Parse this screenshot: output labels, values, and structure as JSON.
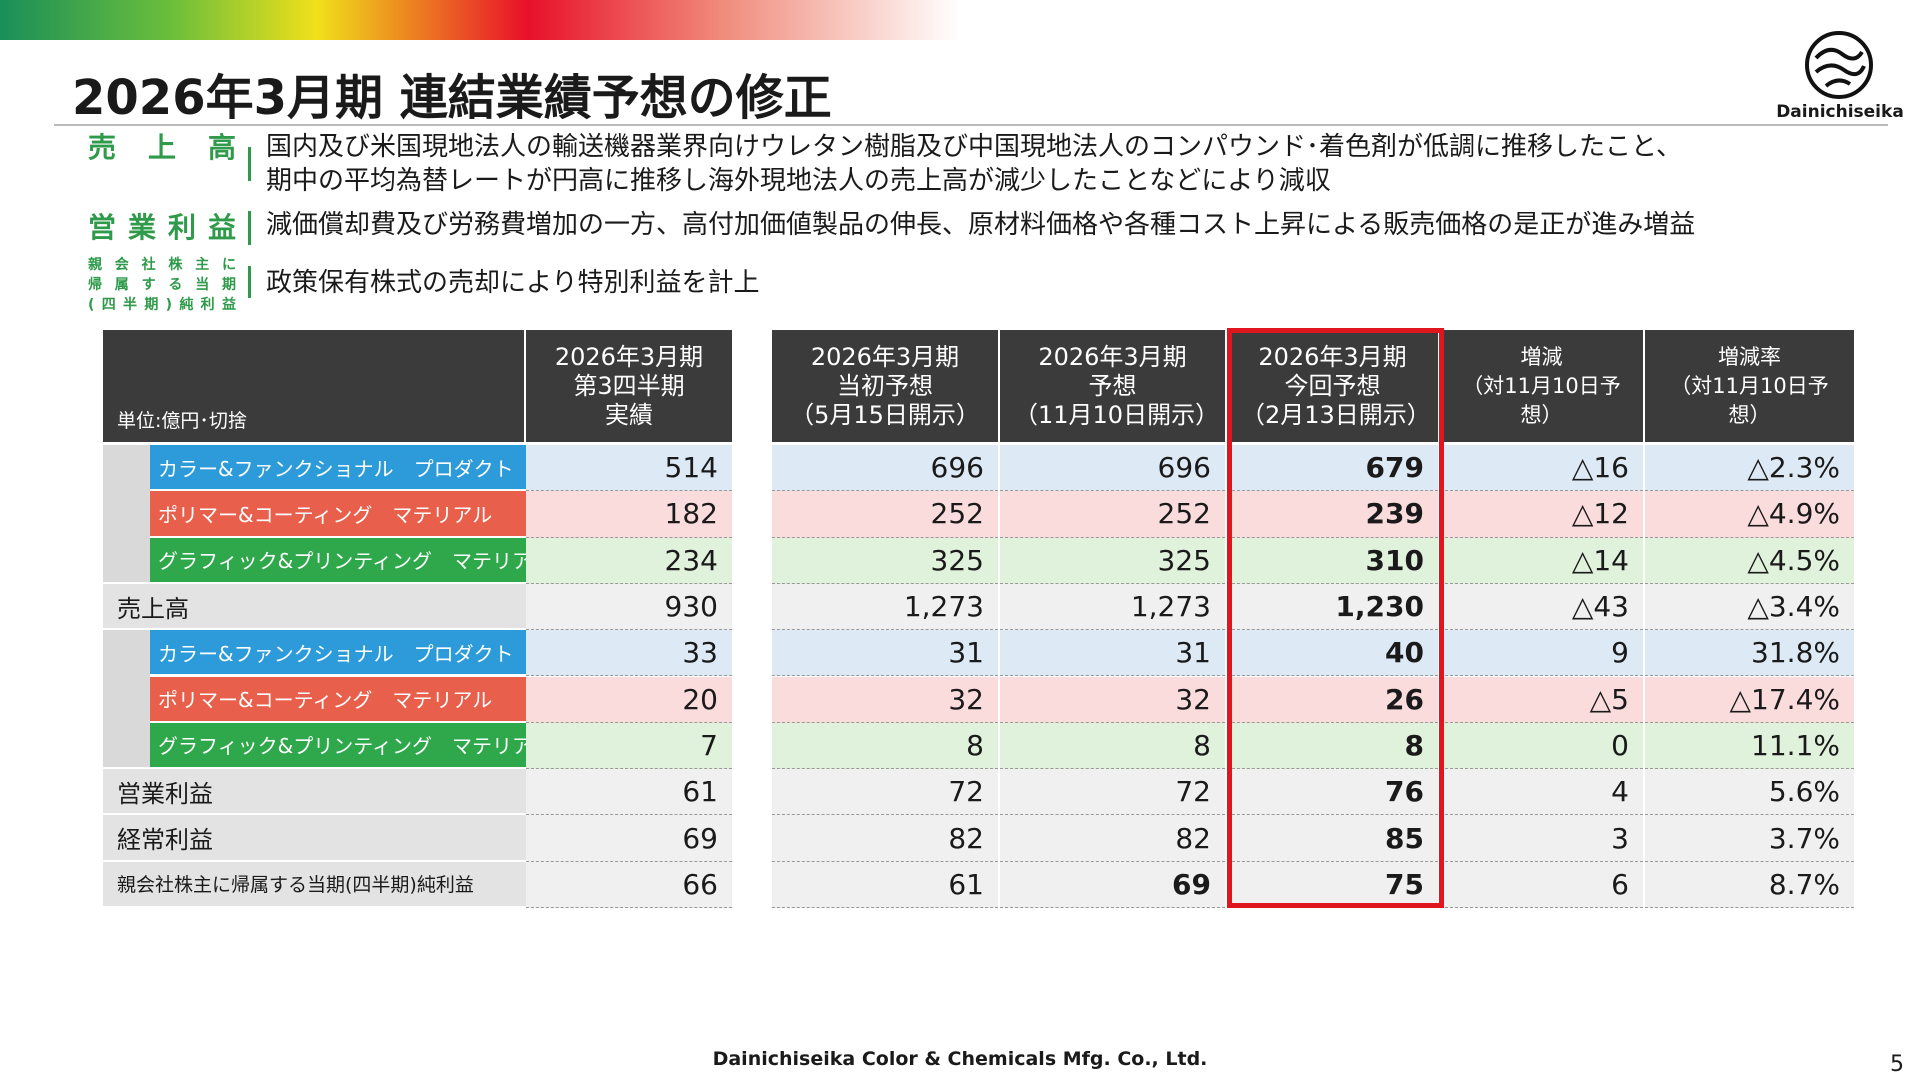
{
  "header": {
    "title": "2026年3月期 連結業績予想の修正",
    "logo": "Dainichiseika"
  },
  "notes": [
    {
      "label": "売上高",
      "text": "国内及び米国現地法人の輸送機器業界向けウレタン樹脂及び中国現地法人のコンパウンド･着色剤が低調に推移したこと、\n期中の平均為替レートが円高に推移し海外現地法人の売上高が減少したことなどにより減収"
    },
    {
      "label": "営業利益",
      "text": "減価償却費及び労務費増加の一方、高付加価値製品の伸長、原材料価格や各種コスト上昇による販売価格の是正が進み増益"
    },
    {
      "label": "親会社株主に\n帰属する当期\n(四半期)純利益",
      "text": "政策保有株式の売却により特別利益を計上"
    }
  ],
  "table": {
    "unit": "単位:億円･切捨",
    "columns": [
      "2026年3月期\n第3四半期\n実績",
      "2026年3月期\n当初予想\n（5月15日開示）",
      "2026年3月期\n予想\n（11月10日開示）",
      "2026年3月期\n今回予想\n（2月13日開示）",
      "増減\n（対11月10日予想）",
      "増減率\n（対11月10日予想）"
    ],
    "rows": [
      {
        "label": "カラー&ファンクショナル　プロダクト",
        "values": [
          "514",
          "696",
          "696",
          "679",
          "△16",
          "△2.3%"
        ]
      },
      {
        "label": "ポリマー&コーティング　マテリアル",
        "values": [
          "182",
          "252",
          "252",
          "239",
          "△12",
          "△4.9%"
        ]
      },
      {
        "label": "グラフィック&プリンティング　マテリアル",
        "values": [
          "234",
          "325",
          "325",
          "310",
          "△14",
          "△4.5%"
        ]
      },
      {
        "label": "売上高",
        "values": [
          "930",
          "1,273",
          "1,273",
          "1,230",
          "△43",
          "△3.4%"
        ]
      },
      {
        "label": "カラー&ファンクショナル　プロダクト",
        "values": [
          "33",
          "31",
          "31",
          "40",
          "9",
          "31.8%"
        ]
      },
      {
        "label": "ポリマー&コーティング　マテリアル",
        "values": [
          "20",
          "32",
          "32",
          "26",
          "△5",
          "△17.4%"
        ]
      },
      {
        "label": "グラフィック&プリンティング　マテリアル",
        "values": [
          "7",
          "8",
          "8",
          "8",
          "0",
          "11.1%"
        ]
      },
      {
        "label": "営業利益",
        "values": [
          "61",
          "72",
          "72",
          "76",
          "4",
          "5.6%"
        ]
      },
      {
        "label": "経常利益",
        "values": [
          "69",
          "82",
          "82",
          "85",
          "3",
          "3.7%"
        ]
      },
      {
        "label": "親会社株主に帰属する当期(四半期)純利益",
        "values": [
          "66",
          "61",
          "69",
          "75",
          "6",
          "8.7%"
        ]
      }
    ]
  },
  "footer": {
    "company": "Dainichiseika Color & Chemicals Mfg. Co., Ltd.",
    "page": "5"
  }
}
